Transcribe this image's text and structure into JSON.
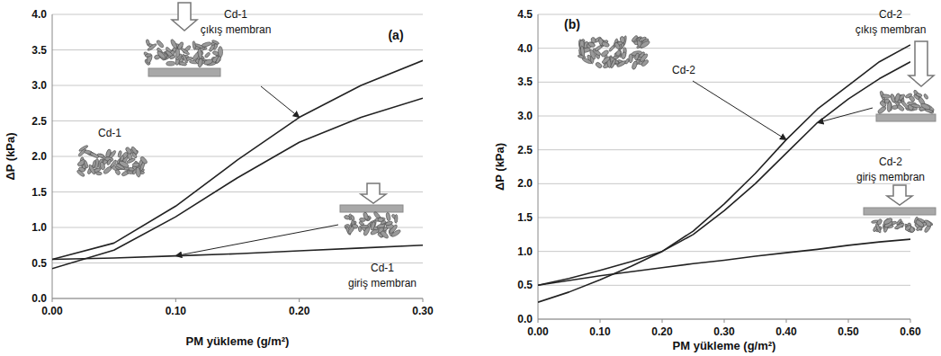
{
  "chart_data": [
    {
      "type": "line",
      "title": "(a)",
      "x_label": "PM yükleme (g/m²)",
      "y_label": "ΔP (kPa)",
      "x": [
        0,
        0.05,
        0.1,
        0.15,
        0.2,
        0.25,
        0.3
      ],
      "xlim": [
        0,
        0.3
      ],
      "xticks": [
        {
          "value": 0,
          "label": "0.00"
        },
        {
          "value": 0.1,
          "label": "0.10"
        },
        {
          "value": 0.2,
          "label": "0.20"
        },
        {
          "value": 0.3,
          "label": "0.30"
        }
      ],
      "ylim": [
        0,
        4
      ],
      "yticks": [
        {
          "value": 0,
          "label": "0.0"
        },
        0.5,
        {
          "value": 1,
          "label": "1.0"
        },
        1.5,
        {
          "value": 2,
          "label": "2.0"
        },
        2.5,
        {
          "value": 3,
          "label": "3.0"
        },
        3.5,
        {
          "value": 4,
          "label": "4.0"
        }
      ],
      "grid": true,
      "series": [
        {
          "name": "Cd-1 çıkış membran",
          "color": "#222222",
          "values": [
            0.55,
            0.78,
            1.3,
            1.95,
            2.55,
            3.0,
            3.35
          ]
        },
        {
          "name": "Cd-1",
          "color": "#222222",
          "values": [
            0.42,
            0.68,
            1.15,
            1.7,
            2.2,
            2.55,
            2.82
          ]
        },
        {
          "name": "Cd-1 giriş membran",
          "color": "#222222",
          "values": [
            0.55,
            0.57,
            0.6,
            0.63,
            0.67,
            0.71,
            0.75
          ]
        }
      ]
    },
    {
      "type": "line",
      "title": "(b)",
      "x_label": "PM yükleme (g/m²)",
      "y_label": "ΔP (kPa)",
      "x": [
        0,
        0.05,
        0.1,
        0.15,
        0.2,
        0.25,
        0.3,
        0.35,
        0.4,
        0.45,
        0.5,
        0.55,
        0.6
      ],
      "xlim": [
        0,
        0.6
      ],
      "xticks": [
        {
          "value": 0,
          "label": "0.00"
        },
        {
          "value": 0.1,
          "label": "0.10"
        },
        {
          "value": 0.2,
          "label": "0.20"
        },
        {
          "value": 0.3,
          "label": "0.30"
        },
        {
          "value": 0.4,
          "label": "0.40"
        },
        {
          "value": 0.5,
          "label": "0.50"
        },
        {
          "value": 0.6,
          "label": "0.60"
        }
      ],
      "ylim": [
        0,
        4.5
      ],
      "yticks": [
        {
          "value": 0,
          "label": "0.0"
        },
        0.5,
        {
          "value": 1,
          "label": "1.0"
        },
        1.5,
        {
          "value": 2,
          "label": "2.0"
        },
        2.5,
        {
          "value": 3,
          "label": "3.0"
        },
        3.5,
        {
          "value": 4,
          "label": "4.0"
        },
        4.5
      ],
      "grid": true,
      "series": [
        {
          "name": "Cd-2",
          "color": "#222222",
          "values": [
            0.25,
            0.4,
            0.58,
            0.78,
            1.0,
            1.3,
            1.7,
            2.15,
            2.65,
            3.1,
            3.45,
            3.8,
            4.05
          ]
        },
        {
          "name": "Cd-2 çıkış membran",
          "color": "#222222",
          "values": [
            0.5,
            0.6,
            0.72,
            0.85,
            1.0,
            1.25,
            1.6,
            2.0,
            2.45,
            2.9,
            3.25,
            3.55,
            3.8
          ]
        },
        {
          "name": "Cd-2 giriş membran",
          "color": "#222222",
          "values": [
            0.5,
            0.57,
            0.64,
            0.7,
            0.76,
            0.82,
            0.87,
            0.93,
            0.98,
            1.03,
            1.09,
            1.14,
            1.18
          ]
        }
      ]
    }
  ]
}
